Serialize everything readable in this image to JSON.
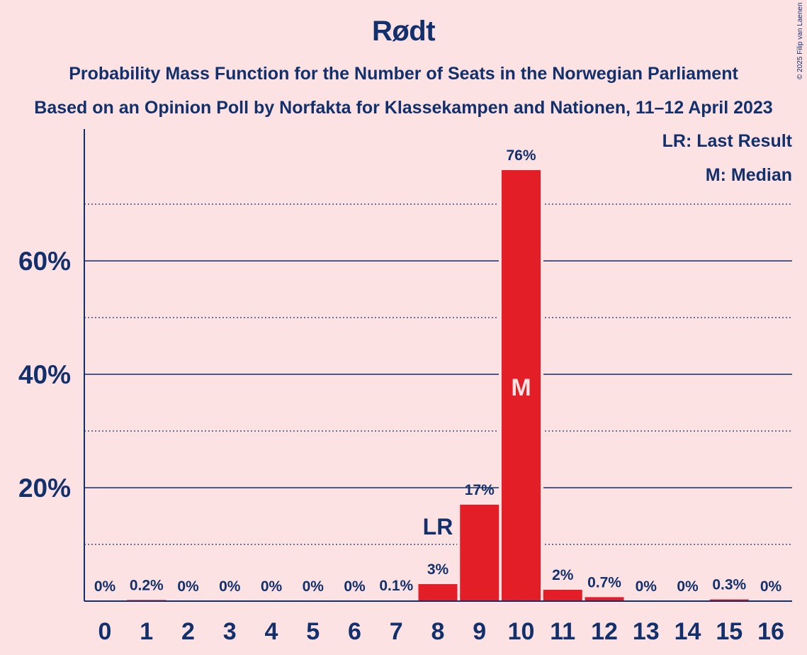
{
  "title": "Rødt",
  "subtitle": "Probability Mass Function for the Number of Seats in the Norwegian Parliament",
  "subtitle2": "Based on an Opinion Poll by Norfakta for Klassekampen and Nationen, 11–12 April 2023",
  "copyright": "© 2025 Filip van Laenen",
  "legend": {
    "last_result": "LR: Last Result",
    "median": "M: Median"
  },
  "colors": {
    "background": "#fde2e4",
    "bar": "#e31e26",
    "text": "#12306b"
  },
  "chart_data": {
    "type": "bar",
    "categories": [
      "0",
      "1",
      "2",
      "3",
      "4",
      "5",
      "6",
      "7",
      "8",
      "9",
      "10",
      "11",
      "12",
      "13",
      "14",
      "15",
      "16"
    ],
    "values": [
      0,
      0.2,
      0,
      0,
      0,
      0,
      0,
      0.1,
      3,
      17,
      76,
      2,
      0.7,
      0,
      0,
      0.3,
      0
    ],
    "value_labels": [
      "0%",
      "0.2%",
      "0%",
      "0%",
      "0%",
      "0%",
      "0%",
      "0.1%",
      "3%",
      "17%",
      "76%",
      "2%",
      "0.7%",
      "0%",
      "0%",
      "0.3%",
      "0%"
    ],
    "yticks": [
      20,
      40,
      60
    ],
    "ytick_labels": [
      "20%",
      "40%",
      "60%"
    ],
    "minor_gridlines": [
      10,
      30,
      50,
      70
    ],
    "ylim": [
      0,
      83
    ],
    "last_result_seat": "8",
    "last_result_label": "LR",
    "median_seat": "10",
    "median_label": "M",
    "legend_placement": "top-right"
  }
}
